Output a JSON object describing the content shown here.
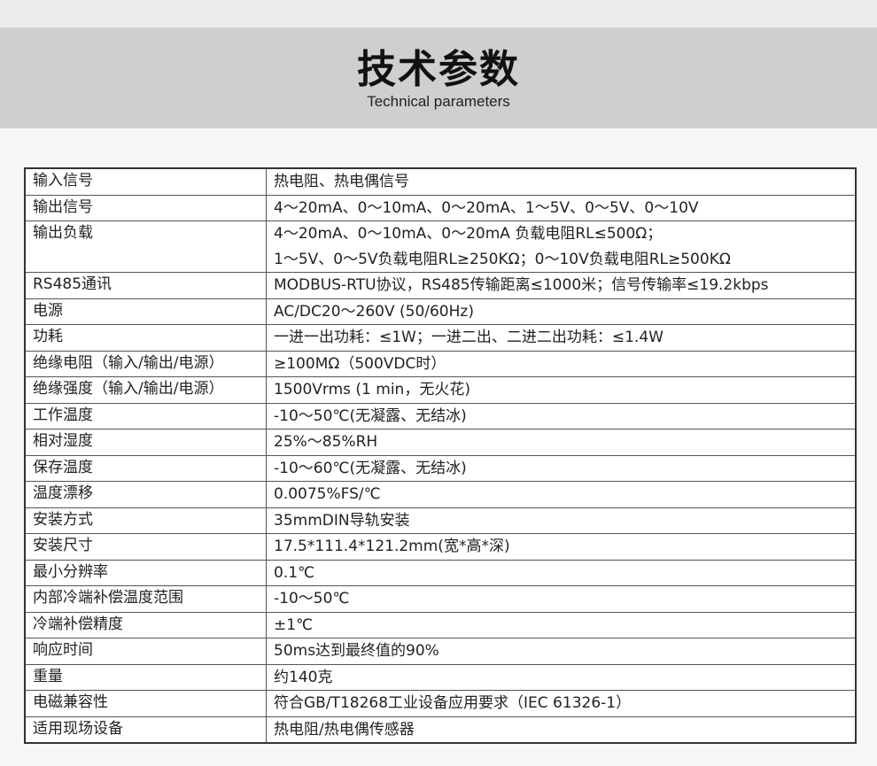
{
  "header": {
    "title": "技术参数",
    "subtitle": "Technical parameters"
  },
  "rows": [
    {
      "label": "输入信号",
      "value": [
        "热电阻、热电偶信号"
      ]
    },
    {
      "label": "输出信号",
      "value": [
        "4～20mA、0～10mA、0～20mA、1～5V、0～5V、0～10V"
      ]
    },
    {
      "label": "输出负载",
      "value": [
        "4～20mA、0～10mA、0～20mA 负载电阻RL≤500Ω；",
        "1～5V、0～5V负载电阻RL≥250KΩ；0～10V负载电阻RL≥500KΩ"
      ]
    },
    {
      "label": "RS485通讯",
      "value": [
        "MODBUS-RTU协议，RS485传输距离≤1000米；信号传输率≤19.2kbps"
      ]
    },
    {
      "label": "电源",
      "value": [
        "AC/DC20～260V (50/60Hz)"
      ]
    },
    {
      "label": "功耗",
      "value": [
        "一进一出功耗：≤1W；一进二出、二进二出功耗：≤1.4W"
      ]
    },
    {
      "label": "绝缘电阻（输入/输出/电源）",
      "value": [
        "≥100MΩ（500VDC时）"
      ]
    },
    {
      "label": "绝缘强度（输入/输出/电源）",
      "value": [
        "1500Vrms (1 min，无火花)"
      ]
    },
    {
      "label": "工作温度",
      "value": [
        "-10～50℃(无凝露、无结冰)"
      ]
    },
    {
      "label": "相对湿度",
      "value": [
        "25%～85%RH"
      ]
    },
    {
      "label": "保存温度",
      "value": [
        "-10～60℃(无凝露、无结冰)"
      ]
    },
    {
      "label": "温度漂移",
      "value": [
        "0.0075%FS/℃"
      ]
    },
    {
      "label": "安装方式",
      "value": [
        "35mmDIN导轨安装"
      ]
    },
    {
      "label": "安装尺寸",
      "value": [
        "17.5*111.4*121.2mm(宽*高*深)"
      ]
    },
    {
      "label": "最小分辨率",
      "value": [
        "0.1℃"
      ]
    },
    {
      "label": "内部冷端补偿温度范围",
      "value": [
        "-10～50℃"
      ]
    },
    {
      "label": "冷端补偿精度",
      "value": [
        "±1℃"
      ]
    },
    {
      "label": "响应时间",
      "value": [
        "50ms达到最终值的90%"
      ]
    },
    {
      "label": "重量",
      "value": [
        "约140克"
      ]
    },
    {
      "label": "电磁兼容性",
      "value": [
        "符合GB/T18268工业设备应用要求（IEC 61326-1）"
      ]
    },
    {
      "label": "适用现场设备",
      "value": [
        "热电阻/热电偶传感器"
      ]
    }
  ]
}
